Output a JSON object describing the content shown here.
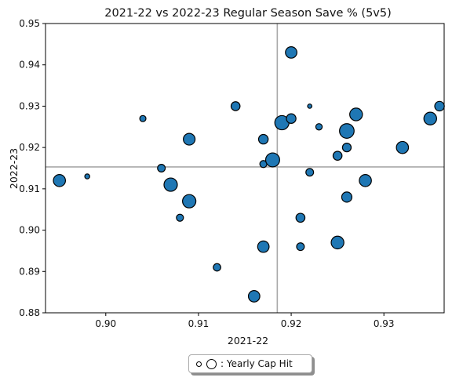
{
  "chart_data": {
    "type": "scatter",
    "title": "2021-22 vs 2022-23 Regular Season Save % (5v5)",
    "xlabel": "2021-22",
    "ylabel": "2022-23",
    "xlim": [
      0.8935,
      0.9365
    ],
    "ylim": [
      0.88,
      0.95
    ],
    "xticks": [
      0.9,
      0.91,
      0.92,
      0.93
    ],
    "xtick_labels": [
      "0.90",
      "0.91",
      "0.92",
      "0.93"
    ],
    "yticks": [
      0.88,
      0.89,
      0.9,
      0.91,
      0.92,
      0.93,
      0.94,
      0.95
    ],
    "ytick_labels": [
      "0.88",
      "0.89",
      "0.90",
      "0.91",
      "0.92",
      "0.93",
      "0.94",
      "0.95"
    ],
    "reference_lines": {
      "x": 0.9185,
      "y": 0.9153
    },
    "grid": false,
    "marker_color": "#1f77b4",
    "edge_color": "#000000",
    "reference_line_color": "#a9a9a9",
    "size_encoding": "Yearly Cap Hit",
    "legend": {
      "label": ": Yearly Cap Hit",
      "placement": "below"
    },
    "points": [
      {
        "x": 0.895,
        "y": 0.912,
        "size": 0.65
      },
      {
        "x": 0.898,
        "y": 0.913,
        "size": 0.08
      },
      {
        "x": 0.904,
        "y": 0.927,
        "size": 0.18
      },
      {
        "x": 0.906,
        "y": 0.915,
        "size": 0.3
      },
      {
        "x": 0.907,
        "y": 0.911,
        "size": 0.75
      },
      {
        "x": 0.908,
        "y": 0.903,
        "size": 0.25
      },
      {
        "x": 0.909,
        "y": 0.922,
        "size": 0.62
      },
      {
        "x": 0.909,
        "y": 0.907,
        "size": 0.75
      },
      {
        "x": 0.912,
        "y": 0.891,
        "size": 0.28
      },
      {
        "x": 0.914,
        "y": 0.93,
        "size": 0.4
      },
      {
        "x": 0.916,
        "y": 0.884,
        "size": 0.6
      },
      {
        "x": 0.917,
        "y": 0.922,
        "size": 0.45
      },
      {
        "x": 0.917,
        "y": 0.916,
        "size": 0.25
      },
      {
        "x": 0.917,
        "y": 0.896,
        "size": 0.6
      },
      {
        "x": 0.918,
        "y": 0.917,
        "size": 0.8
      },
      {
        "x": 0.919,
        "y": 0.926,
        "size": 0.82
      },
      {
        "x": 0.92,
        "y": 0.943,
        "size": 0.6
      },
      {
        "x": 0.92,
        "y": 0.927,
        "size": 0.45
      },
      {
        "x": 0.921,
        "y": 0.903,
        "size": 0.4
      },
      {
        "x": 0.921,
        "y": 0.896,
        "size": 0.3
      },
      {
        "x": 0.922,
        "y": 0.93,
        "size": 0.03
      },
      {
        "x": 0.922,
        "y": 0.914,
        "size": 0.3
      },
      {
        "x": 0.923,
        "y": 0.925,
        "size": 0.2
      },
      {
        "x": 0.925,
        "y": 0.918,
        "size": 0.4
      },
      {
        "x": 0.925,
        "y": 0.897,
        "size": 0.7
      },
      {
        "x": 0.926,
        "y": 0.924,
        "size": 0.85
      },
      {
        "x": 0.926,
        "y": 0.92,
        "size": 0.38
      },
      {
        "x": 0.926,
        "y": 0.908,
        "size": 0.5
      },
      {
        "x": 0.927,
        "y": 0.928,
        "size": 0.7
      },
      {
        "x": 0.928,
        "y": 0.912,
        "size": 0.65
      },
      {
        "x": 0.932,
        "y": 0.92,
        "size": 0.65
      },
      {
        "x": 0.935,
        "y": 0.927,
        "size": 0.7
      },
      {
        "x": 0.936,
        "y": 0.93,
        "size": 0.45
      }
    ]
  }
}
